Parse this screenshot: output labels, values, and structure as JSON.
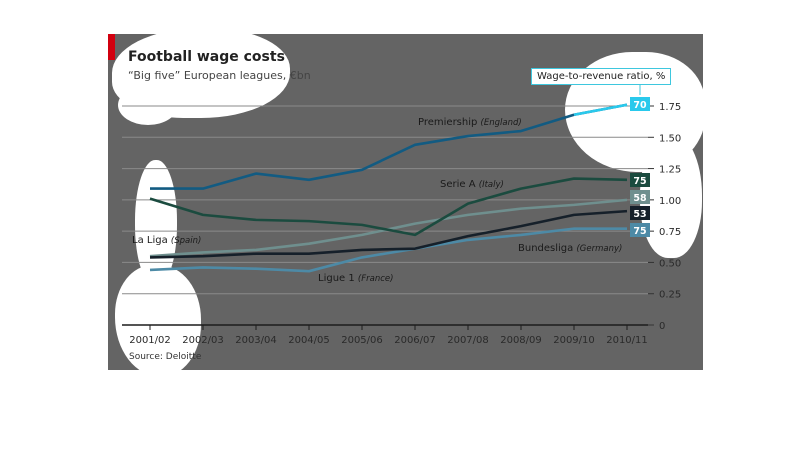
{
  "header": {
    "title": "Football wage costs",
    "subtitle": "“Big five” European leagues, €bn",
    "legend_note": "Wage-to-revenue ratio, %",
    "source": "Source: Deloitte"
  },
  "colors": {
    "panel": "#646464",
    "red_tag": "#d1000f",
    "premiership": "#125b82",
    "premiership_highlight": "#29c9ec",
    "serie_a": "#1b4b3f",
    "bundesliga": "#16202a",
    "ligue_1": "#4d8aa6",
    "la_liga": "#6f8f8e"
  },
  "chart_data": {
    "type": "line",
    "title": "Football wage costs",
    "subtitle": "“Big five” European leagues, €bn",
    "categories": [
      "2001/02",
      "2002/03",
      "2003/04",
      "2004/05",
      "2005/06",
      "2006/07",
      "2007/08",
      "2008/09",
      "2009/10",
      "2010/11"
    ],
    "ylim": [
      0,
      1.75
    ],
    "yticks": [
      "0",
      "0.25",
      "0.50",
      "0.75",
      "1.00",
      "1.25",
      "1.50",
      "1.75"
    ],
    "y_axis_side": "right",
    "grid": true,
    "series": [
      {
        "key": "premiership",
        "name": "Premiership",
        "country": "(England)",
        "values": [
          1.09,
          1.09,
          1.21,
          1.16,
          1.24,
          1.44,
          1.51,
          1.55,
          1.68,
          1.76
        ],
        "ratio_label": "70"
      },
      {
        "key": "serie_a",
        "name": "Serie A",
        "country": "(Italy)",
        "values": [
          1.01,
          0.88,
          0.84,
          0.83,
          0.8,
          0.72,
          0.97,
          1.09,
          1.17,
          1.16
        ],
        "ratio_label": "75"
      },
      {
        "key": "la_liga",
        "name": "La Liga",
        "country": "(Spain)",
        "values": [
          0.55,
          0.58,
          0.6,
          0.65,
          0.72,
          0.81,
          0.88,
          0.93,
          0.96,
          1.0
        ],
        "ratio_label": "58"
      },
      {
        "key": "bundesliga",
        "name": "Bundesliga",
        "country": "(Germany)",
        "values": [
          0.54,
          0.55,
          0.57,
          0.57,
          0.6,
          0.61,
          0.71,
          0.79,
          0.88,
          0.91
        ],
        "ratio_label": "53"
      },
      {
        "key": "ligue_1",
        "name": "Ligue 1",
        "country": "(France)",
        "values": [
          0.44,
          0.46,
          0.45,
          0.43,
          0.54,
          0.61,
          0.68,
          0.72,
          0.77,
          0.77
        ],
        "ratio_label": "75"
      }
    ]
  }
}
